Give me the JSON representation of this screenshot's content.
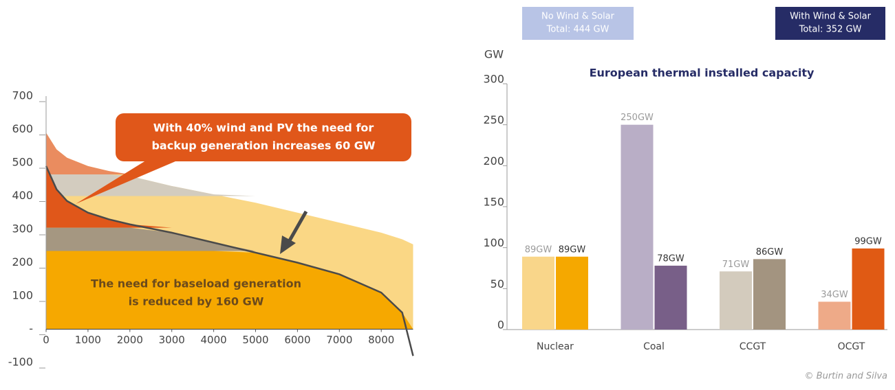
{
  "chart_data": [
    {
      "type": "area",
      "x": [
        0,
        250,
        500,
        1000,
        1500,
        2000,
        3000,
        4000,
        5000,
        6000,
        7000,
        8000,
        8500,
        8760
      ],
      "series": [
        {
          "color": "#fad785",
          "values": [
            590,
            540,
            515,
            490,
            475,
            460,
            430,
            405,
            380,
            350,
            320,
            290,
            270,
            255
          ]
        },
        {
          "color": "#4a4a4a",
          "values": [
            490,
            420,
            385,
            350,
            330,
            315,
            290,
            260,
            230,
            200,
            165,
            110,
            50,
            -80
          ]
        }
      ],
      "bands": [
        {
          "from": 465,
          "color": "#ea8c5f",
          "under": 0
        },
        {
          "from": 400,
          "to": 465,
          "color": "#d3ccbf",
          "under": 0
        },
        {
          "from": 305,
          "color": "#e0571a",
          "under": 1
        },
        {
          "from": 235,
          "to": 305,
          "color": "#a59781",
          "under": 1
        },
        {
          "from": 0,
          "to": 235,
          "color": "#f6a800",
          "under": 1
        }
      ],
      "xlim": [
        0,
        8760
      ],
      "xticks": [
        0,
        1000,
        2000,
        3000,
        4000,
        5000,
        6000,
        7000,
        8000
      ],
      "ylim": [
        -100,
        700
      ],
      "yticks": [
        700,
        600,
        500,
        400,
        300,
        200,
        100,
        {
          "value": 0,
          "label": "-"
        },
        -100
      ],
      "annotations": [
        {
          "lines": [
            "With 40% wind and PV the need for",
            "backup generation increases 60 GW"
          ]
        },
        {
          "lines": [
            "The need for baseload generation",
            "is reduced by 160 GW"
          ]
        }
      ]
    },
    {
      "type": "bar",
      "title": "European thermal installed capacity",
      "ylabel": "GW",
      "categories": [
        "Nuclear",
        "Coal",
        "CCGT",
        "OCGT"
      ],
      "series": [
        {
          "name": "No Wind & Solar",
          "total": "Total: 444 GW",
          "color": "#b8c4e6",
          "colors": [
            "#f9d68a",
            "#b9aec6",
            "#d3cbbd",
            "#eeaa88"
          ],
          "values": [
            89,
            250,
            71,
            34
          ],
          "value_labels": [
            "89GW",
            "250GW",
            "71GW",
            "34GW"
          ]
        },
        {
          "name": "With Wind & Solar",
          "total": "Total: 352 GW",
          "color": "#262c66",
          "colors": [
            "#f5a800",
            "#785f88",
            "#a39480",
            "#e05a14"
          ],
          "values": [
            89,
            78,
            86,
            99
          ],
          "value_labels": [
            "89GW",
            "78GW",
            "86GW",
            "99GW"
          ]
        }
      ],
      "ylim": [
        0,
        300
      ],
      "yticks": [
        0,
        50,
        100,
        150,
        200,
        250,
        300
      ]
    }
  ],
  "credit": "© Burtin and Silva"
}
